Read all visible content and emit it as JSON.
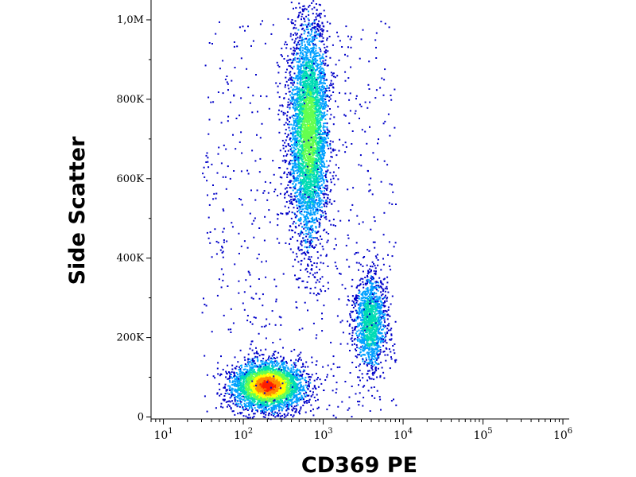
{
  "chart_data": {
    "type": "scatter",
    "title": "",
    "xlabel": "CD369 PE",
    "ylabel": "Side Scatter",
    "x_scale": "log",
    "xlim": [
      7,
      1200000
    ],
    "ylim": [
      -5000,
      1050000
    ],
    "x_ticks": [
      {
        "value": 10,
        "base": "10",
        "exp": "1"
      },
      {
        "value": 100,
        "base": "10",
        "exp": "2"
      },
      {
        "value": 1000,
        "base": "10",
        "exp": "3"
      },
      {
        "value": 10000,
        "base": "10",
        "exp": "4"
      },
      {
        "value": 100000,
        "base": "10",
        "exp": "5"
      },
      {
        "value": 1000000,
        "base": "10",
        "exp": "6"
      }
    ],
    "y_ticks": [
      {
        "value": 0,
        "label": "0"
      },
      {
        "value": 200000,
        "label": "200K"
      },
      {
        "value": 400000,
        "label": "400K"
      },
      {
        "value": 600000,
        "label": "600K"
      },
      {
        "value": 800000,
        "label": "800K"
      },
      {
        "value": 1000000,
        "label": "1,0M"
      }
    ],
    "grid": false,
    "colormap": [
      "#0000c8",
      "#00a0ff",
      "#00dcb4",
      "#64ff50",
      "#ffff00",
      "#ff8c00",
      "#ff1e00"
    ],
    "populations": [
      {
        "name": "",
        "x_center": 200,
        "y_center": 80000,
        "x_spread_log": 0.22,
        "y_spread": 30000,
        "count": 3500,
        "peak_density": 1.0
      },
      {
        "name": "",
        "x_center": 650,
        "y_center": 720000,
        "x_spread_log": 0.12,
        "y_spread": 140000,
        "count": 4200,
        "peak_density": 0.55
      },
      {
        "name": "",
        "x_center": 3800,
        "y_center": 240000,
        "x_spread_log": 0.1,
        "y_spread": 60000,
        "count": 1400,
        "peak_density": 0.4
      }
    ]
  }
}
